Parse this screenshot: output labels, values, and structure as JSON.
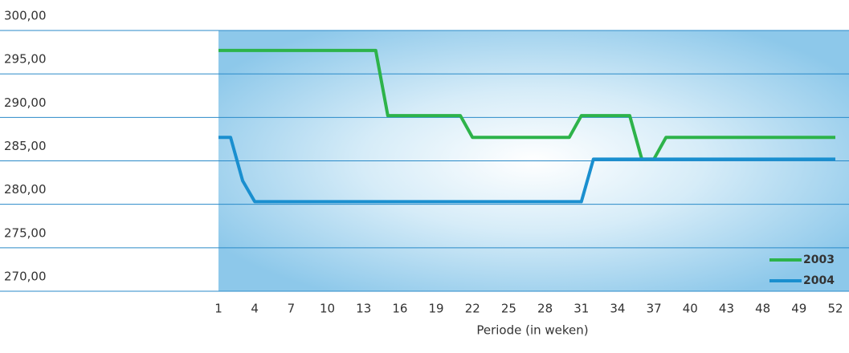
{
  "chart_data": {
    "type": "line",
    "x_label": "Periode (in weken)",
    "categories": [
      "1",
      null,
      null,
      "4",
      null,
      null,
      "7",
      null,
      null,
      "10",
      null,
      null,
      "13",
      null,
      null,
      "16",
      null,
      null,
      "19",
      null,
      null,
      "22",
      null,
      null,
      "25",
      null,
      null,
      "28",
      null,
      null,
      "31",
      null,
      null,
      "34",
      null,
      null,
      "37",
      null,
      null,
      "40",
      null,
      null,
      "43",
      null,
      null,
      "48",
      null,
      null,
      "49",
      null,
      null,
      "52"
    ],
    "series": [
      {
        "name": "2003",
        "color": "#2db34a",
        "values": [
          297.7,
          297.7,
          297.7,
          297.7,
          297.7,
          297.7,
          297.7,
          297.7,
          297.7,
          297.7,
          297.7,
          297.7,
          297.7,
          297.7,
          290.2,
          290.2,
          290.2,
          290.2,
          290.2,
          290.2,
          290.2,
          287.7,
          287.7,
          287.7,
          287.7,
          287.7,
          287.7,
          287.7,
          287.7,
          287.7,
          290.2,
          290.2,
          290.2,
          290.2,
          290.2,
          285.2,
          285.2,
          287.7,
          287.7,
          287.7,
          287.7,
          287.7,
          287.7,
          287.7,
          287.7,
          287.7,
          287.7,
          287.7,
          287.7,
          287.7,
          287.7,
          287.7
        ]
      },
      {
        "name": "2004",
        "color": "#1a8fcf",
        "values": [
          287.7,
          287.7,
          282.7,
          280.3,
          280.3,
          280.3,
          280.3,
          280.3,
          280.3,
          280.3,
          280.3,
          280.3,
          280.3,
          280.3,
          280.3,
          280.3,
          280.3,
          280.3,
          280.3,
          280.3,
          280.3,
          280.3,
          280.3,
          280.3,
          280.3,
          280.3,
          280.3,
          280.3,
          280.3,
          280.3,
          280.3,
          285.2,
          285.2,
          285.2,
          285.2,
          285.2,
          285.2,
          285.2,
          285.2,
          285.2,
          285.2,
          285.2,
          285.2,
          285.2,
          285.2,
          285.2,
          285.2,
          285.2,
          285.2,
          285.2,
          285.2,
          285.2
        ]
      }
    ],
    "ylim": [
      270,
      300
    ],
    "yticks": [
      {
        "value": 270,
        "label": "270,00"
      },
      {
        "value": 275,
        "label": "275,00"
      },
      {
        "value": 280,
        "label": "280,00"
      },
      {
        "value": 285,
        "label": "285,00"
      },
      {
        "value": 290,
        "label": "290,00"
      },
      {
        "value": 295,
        "label": "295,00"
      },
      {
        "value": 300,
        "label": "300,00"
      }
    ],
    "grid": true,
    "legend": "lower right"
  }
}
